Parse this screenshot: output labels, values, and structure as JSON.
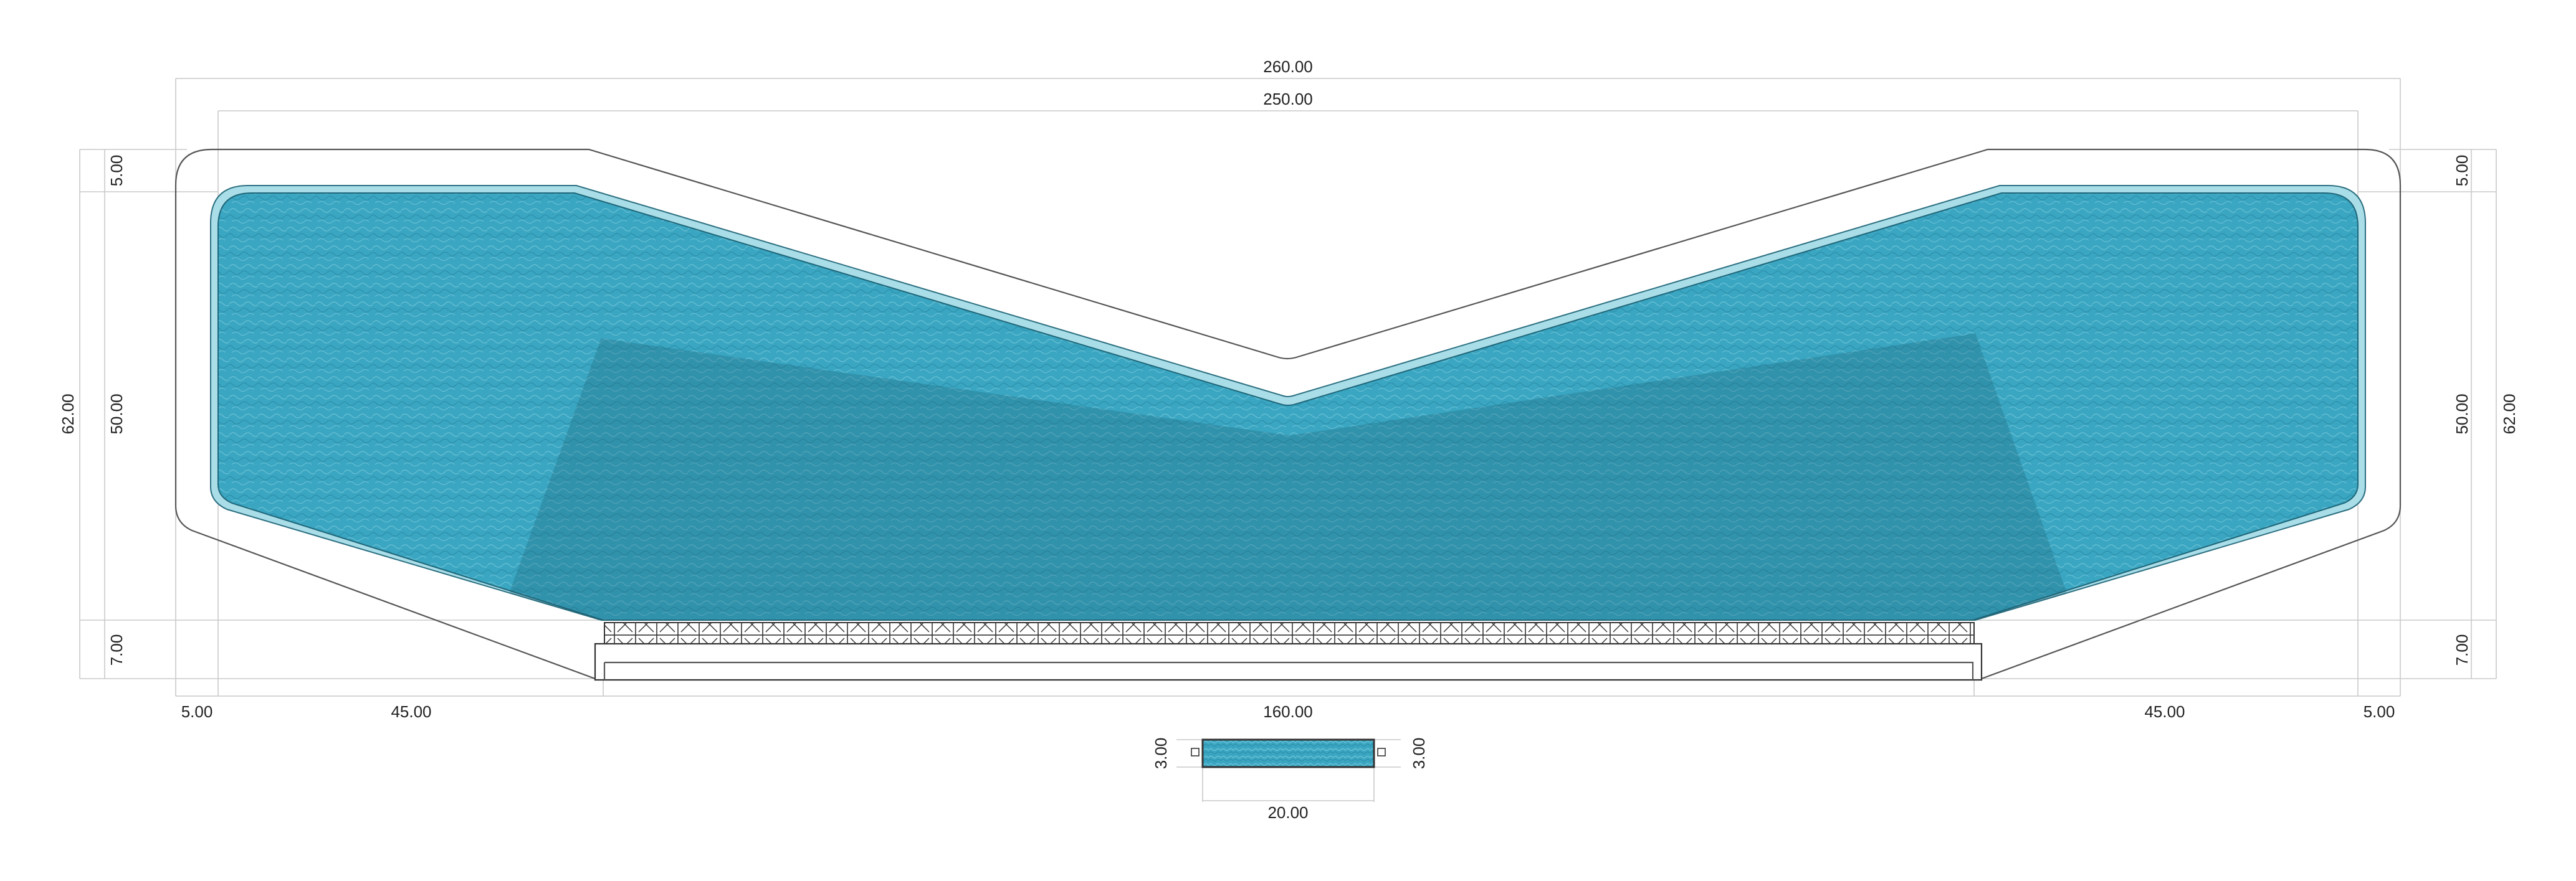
{
  "dimensions": {
    "top_overall": "260.00",
    "top_inner": "250.00",
    "left_total": "62.00",
    "left_top": "5.00",
    "left_mid": "50.00",
    "left_bottom": "7.00",
    "right_total": "62.00",
    "right_top": "5.00",
    "right_mid": "50.00",
    "right_bottom": "7.00",
    "bottom_left_edge": "5.00",
    "bottom_left_slope": "45.00",
    "bottom_center": "160.00",
    "bottom_right_slope": "45.00",
    "bottom_right_edge": "5.00"
  },
  "section_detail": {
    "left_height": "3.00",
    "right_height": "3.00",
    "width": "20.00"
  },
  "colors": {
    "water": "#3aa6c2",
    "water_deep": "#2f8ea8",
    "rim": "#a9dde8",
    "outline": "#555555",
    "dim_line": "#c9c9c9"
  }
}
